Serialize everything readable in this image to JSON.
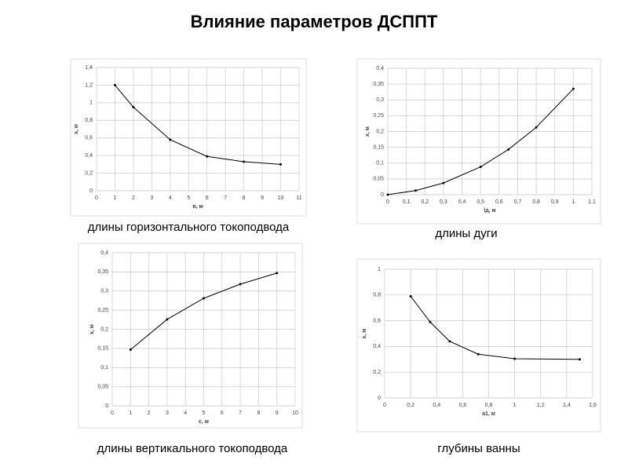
{
  "title": "Влияние параметров ДСППТ",
  "chart_data": [
    {
      "type": "line",
      "caption": "длины горизонтального токоподвода",
      "x_label": "в, м",
      "y_label": "x, м",
      "x": [
        1,
        2,
        4,
        6,
        8,
        10
      ],
      "values": [
        1.2,
        0.95,
        0.58,
        0.39,
        0.33,
        0.3
      ],
      "color": "#000000",
      "xlim": [
        0,
        11
      ],
      "ylim": [
        0,
        1.4
      ],
      "grid": true,
      "xticks": [
        0,
        1,
        2,
        3,
        4,
        5,
        6,
        7,
        8,
        9,
        10,
        11
      ],
      "yticks": [
        0,
        {
          "value": 0.2,
          "label": "0,2"
        },
        {
          "value": 0.4,
          "label": "0,4"
        },
        {
          "value": 0.6,
          "label": "0,6"
        },
        {
          "value": 0.8,
          "label": "0,8"
        },
        1,
        {
          "value": 1.2,
          "label": "1,2"
        },
        {
          "value": 1.4,
          "label": "1,4"
        }
      ]
    },
    {
      "type": "line",
      "caption": "длины дуги",
      "x_label": "lд, м",
      "y_label": "x, м",
      "x": [
        0,
        0.15,
        0.3,
        0.5,
        0.65,
        0.8,
        1
      ],
      "values": [
        0,
        0.013,
        0.037,
        0.088,
        0.143,
        0.213,
        0.335
      ],
      "color": "#000000",
      "xlim": [
        0,
        1.1
      ],
      "ylim": [
        0,
        0.4
      ],
      "grid": true,
      "xticks": [
        0,
        {
          "value": 0.1,
          "label": "0,1"
        },
        {
          "value": 0.2,
          "label": "0,2"
        },
        {
          "value": 0.3,
          "label": "0,3"
        },
        {
          "value": 0.4,
          "label": "0,4"
        },
        {
          "value": 0.5,
          "label": "0,5"
        },
        {
          "value": 0.6,
          "label": "0,6"
        },
        {
          "value": 0.7,
          "label": "0,7"
        },
        {
          "value": 0.8,
          "label": "0,8"
        },
        {
          "value": 0.9,
          "label": "0,9"
        },
        1,
        {
          "value": 1.1,
          "label": "1,1"
        }
      ],
      "yticks": [
        0,
        {
          "value": 0.05,
          "label": "0,05"
        },
        {
          "value": 0.1,
          "label": "0,1"
        },
        {
          "value": 0.15,
          "label": "0,15"
        },
        {
          "value": 0.2,
          "label": "0,2"
        },
        {
          "value": 0.25,
          "label": "0,25"
        },
        {
          "value": 0.3,
          "label": "0,3"
        },
        {
          "value": 0.35,
          "label": "0,35"
        },
        {
          "value": 0.4,
          "label": "0,4"
        }
      ]
    },
    {
      "type": "line",
      "caption": "длины вертикального токоподвода",
      "x_label": "с, м",
      "y_label": "x, м",
      "x": [
        1,
        3,
        5,
        7,
        9
      ],
      "values": [
        0.147,
        0.226,
        0.281,
        0.318,
        0.347
      ],
      "color": "#000000",
      "xlim": [
        0,
        10
      ],
      "ylim": [
        0,
        0.4
      ],
      "grid": true,
      "xticks": [
        0,
        1,
        2,
        3,
        4,
        5,
        6,
        7,
        8,
        9,
        10
      ],
      "yticks": [
        0,
        {
          "value": 0.05,
          "label": "0,05"
        },
        {
          "value": 0.1,
          "label": "0,1"
        },
        {
          "value": 0.15,
          "label": "0,15"
        },
        {
          "value": 0.2,
          "label": "0,2"
        },
        {
          "value": 0.25,
          "label": "0,25"
        },
        {
          "value": 0.3,
          "label": "0,3"
        },
        {
          "value": 0.35,
          "label": "0,35"
        },
        {
          "value": 0.4,
          "label": "0,4"
        }
      ]
    },
    {
      "type": "line",
      "caption": "глубины ванны",
      "x_label": "а1, м",
      "y_label": "x, м",
      "x": [
        0.2,
        0.35,
        0.5,
        0.72,
        1,
        1.5
      ],
      "values": [
        0.79,
        0.59,
        0.44,
        0.34,
        0.305,
        0.3
      ],
      "color": "#000000",
      "xlim": [
        0,
        1.6
      ],
      "ylim": [
        0,
        1
      ],
      "grid": true,
      "xticks": [
        0,
        {
          "value": 0.2,
          "label": "0,2"
        },
        {
          "value": 0.4,
          "label": "0,4"
        },
        {
          "value": 0.6,
          "label": "0,6"
        },
        {
          "value": 0.8,
          "label": "0,8"
        },
        1,
        {
          "value": 1.2,
          "label": "1,2"
        },
        {
          "value": 1.4,
          "label": "1,4"
        },
        {
          "value": 1.6,
          "label": "1,6"
        }
      ],
      "yticks": [
        0,
        {
          "value": 0.2,
          "label": "0,2"
        },
        {
          "value": 0.4,
          "label": "0,4"
        },
        {
          "value": 0.6,
          "label": "0,6"
        },
        {
          "value": 0.8,
          "label": "0,8"
        },
        1
      ]
    }
  ]
}
